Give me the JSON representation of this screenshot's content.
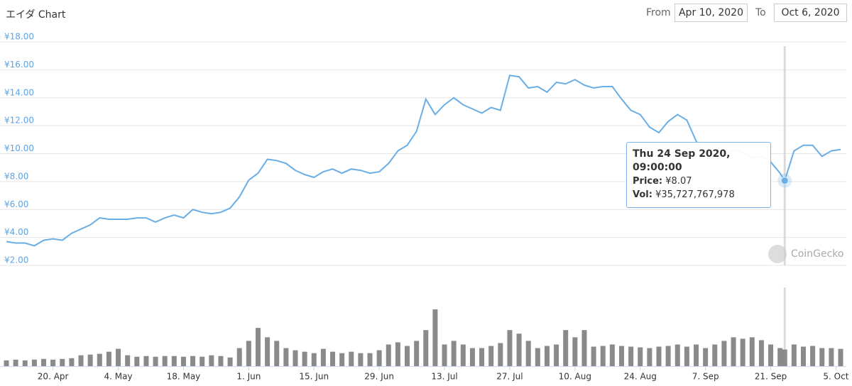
{
  "header": {
    "title": "エイダ Chart",
    "from_label": "From",
    "from": "Apr 10, 2020",
    "to_label": "To",
    "to": "Oct 6, 2020"
  },
  "watermark": "CoinGecko",
  "tooltip": {
    "date": "Thu 24 Sep 2020, 09:00:00",
    "price_label": "Price:",
    "price": "¥8.07",
    "vol_label": "Vol:",
    "vol": "¥35,727,767,978"
  },
  "chart_data": {
    "type": "line",
    "x": [
      "2020-04-10",
      "2020-04-12",
      "2020-04-14",
      "2020-04-16",
      "2020-04-18",
      "2020-04-20",
      "2020-04-22",
      "2020-04-24",
      "2020-04-26",
      "2020-04-28",
      "2020-04-30",
      "2020-05-02",
      "2020-05-04",
      "2020-05-06",
      "2020-05-08",
      "2020-05-10",
      "2020-05-12",
      "2020-05-14",
      "2020-05-16",
      "2020-05-18",
      "2020-05-20",
      "2020-05-22",
      "2020-05-24",
      "2020-05-26",
      "2020-05-28",
      "2020-05-30",
      "2020-06-01",
      "2020-06-03",
      "2020-06-05",
      "2020-06-07",
      "2020-06-09",
      "2020-06-11",
      "2020-06-13",
      "2020-06-15",
      "2020-06-17",
      "2020-06-19",
      "2020-06-21",
      "2020-06-23",
      "2020-06-25",
      "2020-06-27",
      "2020-06-29",
      "2020-07-01",
      "2020-07-03",
      "2020-07-05",
      "2020-07-07",
      "2020-07-09",
      "2020-07-11",
      "2020-07-13",
      "2020-07-15",
      "2020-07-17",
      "2020-07-19",
      "2020-07-21",
      "2020-07-23",
      "2020-07-25",
      "2020-07-27",
      "2020-07-29",
      "2020-07-31",
      "2020-08-02",
      "2020-08-04",
      "2020-08-06",
      "2020-08-08",
      "2020-08-10",
      "2020-08-12",
      "2020-08-14",
      "2020-08-16",
      "2020-08-18",
      "2020-08-20",
      "2020-08-22",
      "2020-08-24",
      "2020-08-26",
      "2020-08-28",
      "2020-08-30",
      "2020-09-01",
      "2020-09-03",
      "2020-09-05",
      "2020-09-07",
      "2020-09-09",
      "2020-09-11",
      "2020-09-13",
      "2020-09-15",
      "2020-09-17",
      "2020-09-19",
      "2020-09-21",
      "2020-09-23",
      "2020-09-24",
      "2020-09-26",
      "2020-09-28",
      "2020-09-30",
      "2020-10-02",
      "2020-10-04",
      "2020-10-06"
    ],
    "series": [
      {
        "name": "Price",
        "color": "#6aaee6",
        "values": [
          3.7,
          3.6,
          3.6,
          3.4,
          3.8,
          3.9,
          3.8,
          4.3,
          4.6,
          4.9,
          5.4,
          5.3,
          5.3,
          5.3,
          5.4,
          5.4,
          5.1,
          5.4,
          5.6,
          5.4,
          6.0,
          5.8,
          5.7,
          5.8,
          6.1,
          6.9,
          8.1,
          8.6,
          9.6,
          9.5,
          9.3,
          8.8,
          8.5,
          8.3,
          8.7,
          8.9,
          8.6,
          8.9,
          8.8,
          8.6,
          8.7,
          9.3,
          10.2,
          10.6,
          11.6,
          13.9,
          12.8,
          13.5,
          14.0,
          13.5,
          13.2,
          12.9,
          13.3,
          13.1,
          15.6,
          15.5,
          14.7,
          14.8,
          14.4,
          15.1,
          15.0,
          15.3,
          14.9,
          14.7,
          14.8,
          14.8,
          13.9,
          13.1,
          12.8,
          11.9,
          11.5,
          12.3,
          12.8,
          12.4,
          10.9,
          9.8,
          9.9,
          9.9,
          10.3,
          10.1,
          9.7,
          9.8,
          9.4,
          8.6,
          8.07,
          10.2,
          10.6,
          10.6,
          9.8,
          10.2,
          10.3
        ]
      },
      {
        "name": "Vol",
        "color": "#8a8a8a",
        "values": [
          12400000000.0,
          14000000000.0,
          12400000000.0,
          14000000000.0,
          15500000000.0,
          14000000000.0,
          15500000000.0,
          17100000000.0,
          23300000000.0,
          24800000000.0,
          26400000000.0,
          31000000000.0,
          37200000000.0,
          23300000000.0,
          20200000000.0,
          21700000000.0,
          20200000000.0,
          21700000000.0,
          21700000000.0,
          20200000000.0,
          21700000000.0,
          20200000000.0,
          23300000000.0,
          21700000000.0,
          18600000000.0,
          38800000000.0,
          54300000000.0,
          82200000000.0,
          62000000000.0,
          54300000000.0,
          38800000000.0,
          34100000000.0,
          31000000000.0,
          27900000000.0,
          37200000000.0,
          31000000000.0,
          27900000000.0,
          31000000000.0,
          27900000000.0,
          27900000000.0,
          34100000000.0,
          46500000000.0,
          51200000000.0,
          43400000000.0,
          54300000000.0,
          77500000000.0,
          122000000000.0,
          46500000000.0,
          54300000000.0,
          46500000000.0,
          38800000000.0,
          38800000000.0,
          43400000000.0,
          49600000000.0,
          77500000000.0,
          69800000000.0,
          54300000000.0,
          38800000000.0,
          43400000000.0,
          46500000000.0,
          77500000000.0,
          62000000000.0,
          77500000000.0,
          41900000000.0,
          43400000000.0,
          46500000000.0,
          43400000000.0,
          41900000000.0,
          40300000000.0,
          38800000000.0,
          41900000000.0,
          43400000000.0,
          46500000000.0,
          41900000000.0,
          46500000000.0,
          38800000000.0,
          46500000000.0,
          54300000000.0,
          62000000000.0,
          58900000000.0,
          62000000000.0,
          55800000000.0,
          46500000000.0,
          38800000000.0,
          35727767978,
          46500000000.0,
          41900000000.0,
          43400000000.0,
          38800000000.0,
          38800000000.0,
          37200000000.0
        ]
      }
    ],
    "xlim": [
      "2020-04-10",
      "2020-10-06"
    ],
    "xticks": [
      {
        "value": "2020-04-20",
        "label": "20. Apr"
      },
      {
        "value": "2020-05-04",
        "label": "4. May"
      },
      {
        "value": "2020-05-18",
        "label": "18. May"
      },
      {
        "value": "2020-06-01",
        "label": "1. Jun"
      },
      {
        "value": "2020-06-15",
        "label": "15. Jun"
      },
      {
        "value": "2020-06-29",
        "label": "29. Jun"
      },
      {
        "value": "2020-07-13",
        "label": "13. Jul"
      },
      {
        "value": "2020-07-27",
        "label": "27. Jul"
      },
      {
        "value": "2020-08-10",
        "label": "10. Aug"
      },
      {
        "value": "2020-08-24",
        "label": "24. Aug"
      },
      {
        "value": "2020-09-07",
        "label": "7. Sep"
      },
      {
        "value": "2020-09-21",
        "label": "21. Sep"
      },
      {
        "value": "2020-10-05",
        "label": "5. Oct"
      }
    ],
    "ylim": [
      2,
      18
    ],
    "yticks": [
      {
        "value": 2,
        "label": "¥2.00"
      },
      {
        "value": 4,
        "label": "¥4.00"
      },
      {
        "value": 6,
        "label": "¥6.00"
      },
      {
        "value": 8,
        "label": "¥8.00"
      },
      {
        "value": 10,
        "label": "¥10.00"
      },
      {
        "value": 12,
        "label": "¥12.00"
      },
      {
        "value": 14,
        "label": "¥14.00"
      },
      {
        "value": 16,
        "label": "¥16.00"
      },
      {
        "value": 18,
        "label": "¥18.00"
      }
    ],
    "grid": true
  }
}
